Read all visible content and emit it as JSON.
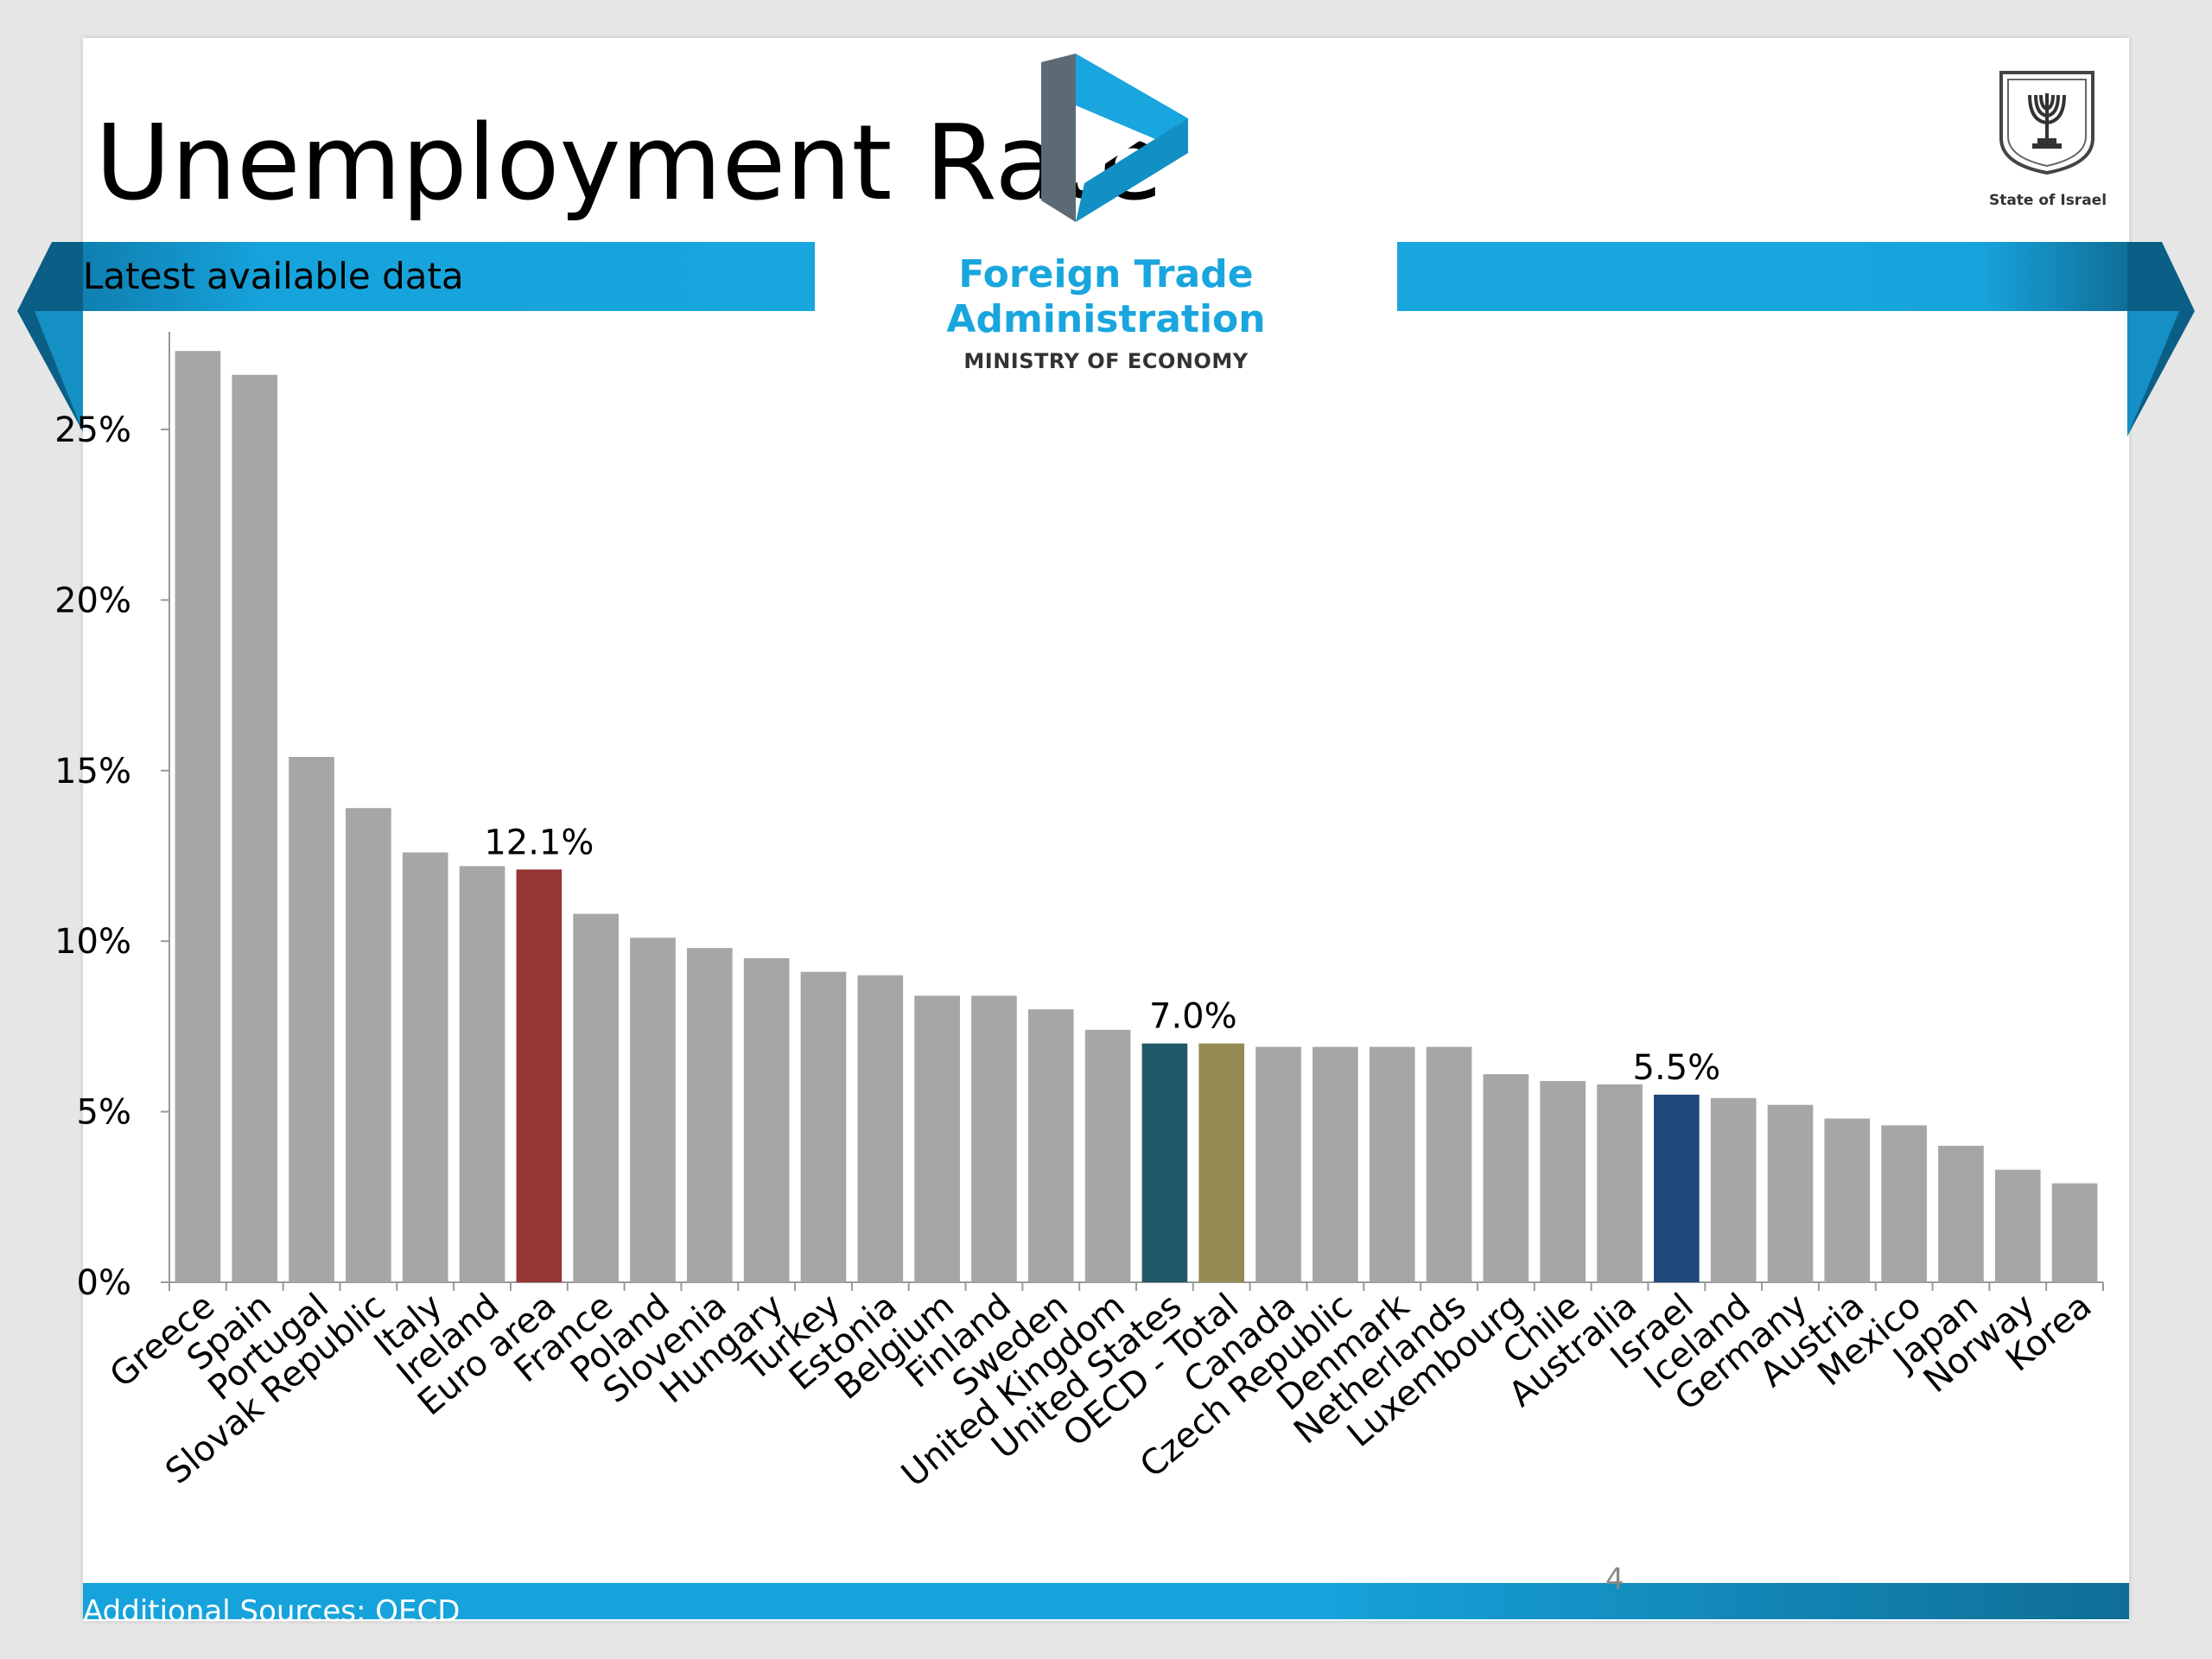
{
  "slide": {
    "title": "Unemployment Rate",
    "subtitle": "Latest available data",
    "footer_source": "Additional Sources: OECD",
    "page_number": "4"
  },
  "logo": {
    "name_line1": "Foreign Trade",
    "name_line2": "Administration",
    "ministry": "MINISTRY OF ECONOMY",
    "emblem_caption": "State of Israel"
  },
  "colors": {
    "default_bar": "#a6a6a6",
    "euro_area": "#953735",
    "united_states": "#215968",
    "oecd_total": "#948a54",
    "israel": "#1f497d",
    "banner": "#19a6de"
  },
  "chart_data": {
    "type": "bar",
    "title": "Unemployment Rate",
    "subtitle": "Latest available data",
    "xlabel": "",
    "ylabel": "",
    "ylim": [
      0,
      27.5
    ],
    "yticks": [
      0,
      5,
      10,
      15,
      20,
      25
    ],
    "ytick_format": "percent",
    "grid": false,
    "legend": "none",
    "categories": [
      "Greece",
      "Spain",
      "Portugal",
      "Slovak Republic",
      "Italy",
      "Ireland",
      "Euro area",
      "France",
      "Poland",
      "Slovenia",
      "Hungary",
      "Turkey",
      "Estonia",
      "Belgium",
      "Finland",
      "Sweden",
      "United Kingdom",
      "United States",
      "OECD - Total",
      "Canada",
      "Czech Republic",
      "Denmark",
      "Netherlands",
      "Luxembourg",
      "Chile",
      "Australia",
      "Israel",
      "Iceland",
      "Germany",
      "Austria",
      "Mexico",
      "Japan",
      "Norway",
      "Korea"
    ],
    "values": [
      27.3,
      26.6,
      15.4,
      13.9,
      12.6,
      12.2,
      12.1,
      10.8,
      10.1,
      9.8,
      9.5,
      9.1,
      9.0,
      8.4,
      8.4,
      8.0,
      7.4,
      7.0,
      7.0,
      6.9,
      6.9,
      6.9,
      6.9,
      6.1,
      5.9,
      5.8,
      5.5,
      5.4,
      5.2,
      4.8,
      4.6,
      4.0,
      3.3,
      2.9
    ],
    "highlights": {
      "Euro area": "#953735",
      "United States": "#215968",
      "OECD - Total": "#948a54",
      "Israel": "#1f497d"
    },
    "data_labels": [
      {
        "category": "Euro area",
        "text": "12.1%"
      },
      {
        "category": "OECD - Total",
        "text": "7.0%"
      },
      {
        "category": "Israel",
        "text": "5.5%"
      }
    ]
  }
}
